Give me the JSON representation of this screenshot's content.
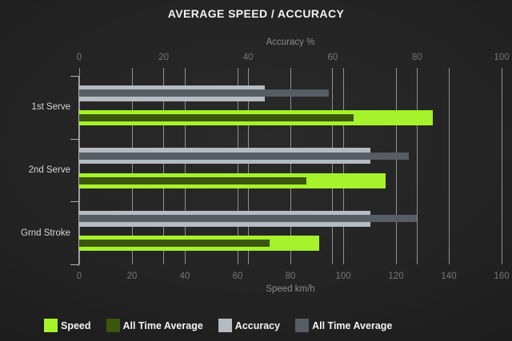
{
  "title": "AVERAGE SPEED / ACCURACY",
  "chart_data": {
    "type": "bar",
    "orientation": "horizontal",
    "grid": true,
    "legend_position": "bottom",
    "categories": [
      "1st Serve",
      "2nd Serve",
      "Grnd Stroke"
    ],
    "axes": {
      "top": {
        "label": "Accuracy %",
        "min": 0,
        "max": 100,
        "ticks": [
          0,
          20,
          40,
          60,
          80,
          100
        ]
      },
      "bottom": {
        "label": "Speed km/h",
        "min": 0,
        "max": 160,
        "ticks": [
          0,
          20,
          40,
          60,
          80,
          100,
          120,
          140,
          160
        ]
      }
    },
    "series": [
      {
        "name": "Speed",
        "axis": "speed",
        "role": "main",
        "color": "#a6f22b",
        "values": [
          134,
          116,
          91
        ]
      },
      {
        "name": "All Time Average",
        "axis": "speed",
        "role": "overlay",
        "color": "#3c560d",
        "values": [
          104,
          86,
          72
        ]
      },
      {
        "name": "Accuracy",
        "axis": "accuracy",
        "role": "main",
        "color": "#b4bbc1",
        "values": [
          44,
          69,
          69
        ]
      },
      {
        "name": "All Time Average",
        "axis": "accuracy",
        "role": "overlay",
        "color": "#565d64",
        "values": [
          59,
          78,
          80
        ]
      }
    ],
    "colors": {
      "background": "#1e1e1e",
      "gridline": "#8d9093",
      "title_text": "#f2f2f2",
      "axis_text": "#8b8b8b",
      "tick_text": "#767676",
      "category_text": "#d6d6d6",
      "legend_text": "#f2f2f2"
    }
  }
}
